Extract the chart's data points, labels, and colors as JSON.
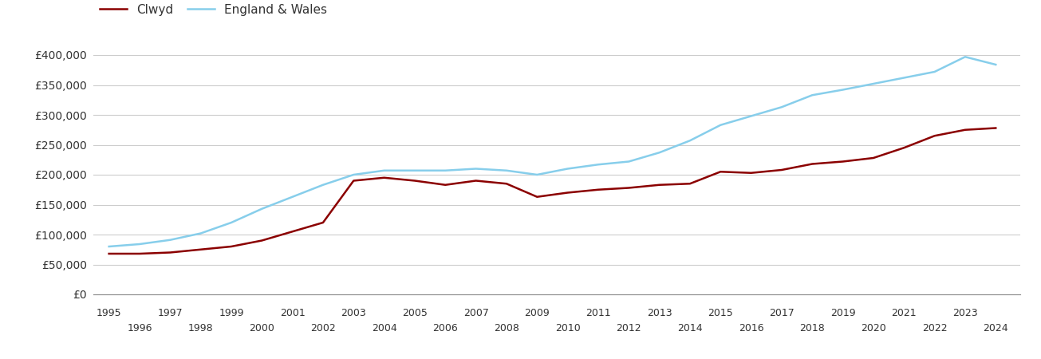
{
  "clwyd_years": [
    1995,
    1996,
    1997,
    1998,
    1999,
    2000,
    2001,
    2002,
    2003,
    2004,
    2005,
    2006,
    2007,
    2008,
    2009,
    2010,
    2011,
    2012,
    2013,
    2014,
    2015,
    2016,
    2017,
    2018,
    2019,
    2020,
    2021,
    2022,
    2023,
    2024
  ],
  "clwyd_values": [
    68000,
    68000,
    70000,
    75000,
    80000,
    90000,
    105000,
    120000,
    190000,
    195000,
    190000,
    183000,
    190000,
    185000,
    163000,
    170000,
    175000,
    178000,
    183000,
    185000,
    205000,
    203000,
    208000,
    218000,
    222000,
    228000,
    245000,
    265000,
    275000,
    278000
  ],
  "ew_years": [
    1995,
    1996,
    1997,
    1998,
    1999,
    2000,
    2001,
    2002,
    2003,
    2004,
    2005,
    2006,
    2007,
    2008,
    2009,
    2010,
    2011,
    2012,
    2013,
    2014,
    2015,
    2016,
    2017,
    2018,
    2019,
    2020,
    2021,
    2022,
    2023,
    2024
  ],
  "ew_values": [
    80000,
    84000,
    91000,
    102000,
    120000,
    143000,
    163000,
    183000,
    200000,
    207000,
    207000,
    207000,
    210000,
    207000,
    200000,
    210000,
    217000,
    222000,
    237000,
    257000,
    283000,
    298000,
    313000,
    333000,
    342000,
    352000,
    362000,
    372000,
    397000,
    384000
  ],
  "clwyd_color": "#8B0000",
  "ew_color": "#87CEEB",
  "clwyd_label": "Clwyd",
  "ew_label": "England & Wales",
  "ylim": [
    0,
    420000
  ],
  "yticks": [
    0,
    50000,
    100000,
    150000,
    200000,
    250000,
    300000,
    350000,
    400000
  ],
  "ytick_labels": [
    "£0",
    "£50,000",
    "£100,000",
    "£150,000",
    "£200,000",
    "£250,000",
    "£300,000",
    "£350,000",
    "£400,000"
  ],
  "xticks_odd": [
    1995,
    1997,
    1999,
    2001,
    2003,
    2005,
    2007,
    2009,
    2011,
    2013,
    2015,
    2017,
    2019,
    2021,
    2023
  ],
  "xticks_even": [
    1996,
    1998,
    2000,
    2002,
    2004,
    2006,
    2008,
    2010,
    2012,
    2014,
    2016,
    2018,
    2020,
    2022,
    2024
  ],
  "xlim": [
    1994.5,
    2024.8
  ],
  "background_color": "#ffffff",
  "grid_color": "#cccccc",
  "line_width": 1.8
}
